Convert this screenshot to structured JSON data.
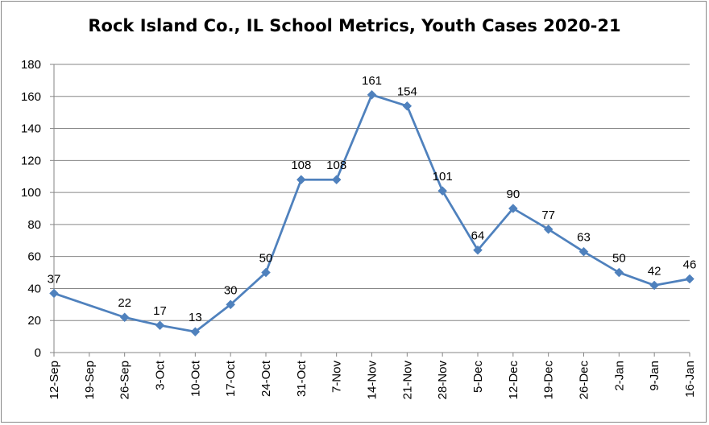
{
  "chart_data": {
    "type": "line",
    "title": "Rock Island Co., IL School Metrics, Youth Cases 2020-21",
    "xlabel": "",
    "ylabel": "",
    "categories": [
      "12-Sep",
      "19-Sep",
      "26-Sep",
      "3-Oct",
      "10-Oct",
      "17-Oct",
      "24-Oct",
      "31-Oct",
      "7-Nov",
      "14-Nov",
      "21-Nov",
      "28-Nov",
      "5-Dec",
      "12-Dec",
      "19-Dec",
      "26-Dec",
      "2-Jan",
      "9-Jan",
      "16-Jan"
    ],
    "series": [
      {
        "points": [
          {
            "x": "12-Sep",
            "y": 37
          },
          {
            "x": "26-Sep",
            "y": 22
          },
          {
            "x": "3-Oct",
            "y": 17
          },
          {
            "x": "10-Oct",
            "y": 13
          },
          {
            "x": "17-Oct",
            "y": 30
          },
          {
            "x": "24-Oct",
            "y": 50
          },
          {
            "x": "31-Oct",
            "y": 108
          },
          {
            "x": "7-Nov",
            "y": 108
          },
          {
            "x": "14-Nov",
            "y": 161
          },
          {
            "x": "21-Nov",
            "y": 154
          },
          {
            "x": "28-Nov",
            "y": 101
          },
          {
            "x": "5-Dec",
            "y": 64
          },
          {
            "x": "12-Dec",
            "y": 90
          },
          {
            "x": "19-Dec",
            "y": 77
          },
          {
            "x": "26-Dec",
            "y": 63
          },
          {
            "x": "2-Jan",
            "y": 50
          },
          {
            "x": "9-Jan",
            "y": 42
          },
          {
            "x": "16-Jan",
            "y": 46
          }
        ],
        "color": "#4f81bd",
        "marker": "diamond",
        "data_labels": true
      }
    ],
    "ylim": [
      0,
      180
    ],
    "yticks": [
      0,
      20,
      40,
      60,
      80,
      100,
      120,
      140,
      160,
      180
    ],
    "grid": true,
    "legend": "none"
  }
}
